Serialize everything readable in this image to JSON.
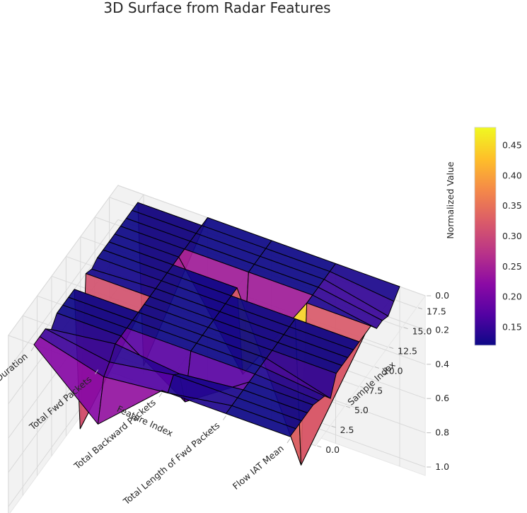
{
  "chart_data": {
    "type": "surface3d",
    "title": "3D Surface from Radar Features",
    "xlabel": "Feature Index",
    "ylabel": "Sample Index",
    "zlabel": "Normalized Value",
    "x_categories": [
      "Flow Duration",
      "Total Fwd Packets",
      "Total Backward Packets",
      "Total Length of Fwd Packets",
      "Flow IAT Mean"
    ],
    "y_ticks": [
      "0.0",
      "2.5",
      "5.0",
      "7.5",
      "10.0",
      "12.5",
      "15.0",
      "17.5"
    ],
    "y_range": [
      0,
      19
    ],
    "z_ticks": [
      "0.0",
      "0.2",
      "0.4",
      "0.6",
      "0.8",
      "1.0"
    ],
    "z_range": [
      0,
      1
    ],
    "colormap": "plasma",
    "colorbar_ticks": [
      "0.15",
      "0.20",
      "0.25",
      "0.30",
      "0.35",
      "0.40",
      "0.45"
    ],
    "colorbar_range": [
      0.12,
      0.48
    ],
    "grid": true,
    "z": [
      [
        0.0,
        0.33,
        0.0,
        0.0,
        0.0
      ],
      [
        0.0,
        0.1,
        0.06,
        0.0,
        0.0
      ],
      [
        0.0,
        0.06,
        0.0,
        0.0,
        0.0
      ],
      [
        0.05,
        0.0,
        0.04,
        0.0,
        0.0
      ],
      [
        0.0,
        0.0,
        0.25,
        0.0,
        0.0
      ],
      [
        0.0,
        0.0,
        0.0,
        0.0,
        0.02
      ],
      [
        0.0,
        0.0,
        0.0,
        0.0,
        0.04
      ],
      [
        0.0,
        0.0,
        0.0,
        0.0,
        0.1
      ],
      [
        0.86,
        0.0,
        0.0,
        0.0,
        0.0
      ],
      [
        0.0,
        0.0,
        0.0,
        0.0,
        0.0
      ],
      [
        0.02,
        0.0,
        0.0,
        0.0,
        0.0
      ],
      [
        0.0,
        0.0,
        0.0,
        0.0,
        0.0
      ],
      [
        0.0,
        0.0,
        0.0,
        0.0,
        0.0
      ],
      [
        0.0,
        0.0,
        0.0,
        0.9,
        0.0
      ],
      [
        0.0,
        0.0,
        0.55,
        0.0,
        0.0
      ],
      [
        0.0,
        0.0,
        0.0,
        0.0,
        0.06
      ],
      [
        0.0,
        0.0,
        0.0,
        0.0,
        0.06
      ],
      [
        0.0,
        0.0,
        0.0,
        0.0,
        0.08
      ],
      [
        0.0,
        0.0,
        0.0,
        0.0,
        0.04
      ],
      [
        1.0,
        0.0,
        0.0,
        0.0,
        0.0
      ]
    ]
  }
}
